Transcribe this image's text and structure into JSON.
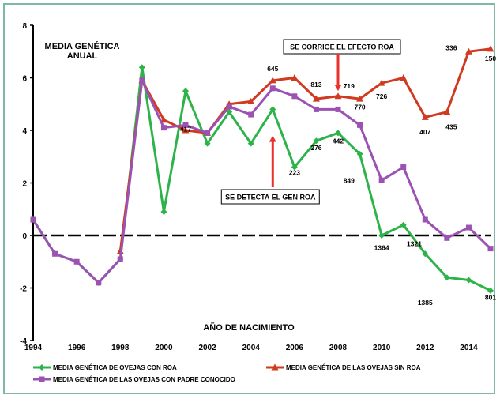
{
  "chart_data": {
    "type": "line",
    "title": "MEDIA GENÉTICA",
    "subtitle": "ANUAL",
    "xlabel": "AÑO DE NACIMIENTO",
    "ylabel": "",
    "xlim": [
      1994,
      2015
    ],
    "ylim": [
      -4,
      8
    ],
    "x_ticks": [
      1994,
      1996,
      1998,
      2000,
      2002,
      2004,
      2006,
      2008,
      2010,
      2012,
      2014
    ],
    "y_ticks": [
      -4,
      -2,
      0,
      2,
      4,
      6,
      8
    ],
    "grid": false,
    "legend_position": "bottom",
    "x": [
      1994,
      1995,
      1996,
      1997,
      1998,
      1999,
      2000,
      2001,
      2002,
      2003,
      2004,
      2005,
      2006,
      2007,
      2008,
      2009,
      2010,
      2011,
      2012,
      2013,
      2014,
      2015
    ],
    "series": [
      {
        "name": "MEDIA GENÉTICA DE OVEJAS CON ROA",
        "color": "#2db34a",
        "marker": "diamond",
        "values": [
          0.6,
          -0.7,
          -1.0,
          -1.8,
          -0.9,
          6.4,
          0.9,
          5.5,
          3.5,
          4.7,
          3.5,
          4.8,
          2.6,
          3.6,
          3.9,
          3.1,
          0.0,
          0.4,
          -0.7,
          -1.6,
          -1.7,
          -2.1
        ]
      },
      {
        "name": "MEDIA GENÉTICA DE LAS OVEJAS SIN ROA",
        "color": "#d03a20",
        "marker": "triangle",
        "values": [
          null,
          null,
          null,
          null,
          -0.6,
          5.9,
          4.4,
          4.0,
          3.9,
          5.0,
          5.1,
          5.9,
          6.0,
          5.2,
          5.3,
          5.2,
          5.8,
          6.0,
          4.5,
          4.7,
          7.0,
          7.1
        ]
      },
      {
        "name": "MEDIA GENÉTICA DE LAS OVEJAS CON PADRE CONOCIDO",
        "color": "#9b52b2",
        "marker": "square",
        "values": [
          0.6,
          -0.7,
          -1.0,
          -1.8,
          -0.9,
          5.9,
          4.1,
          4.2,
          3.9,
          4.9,
          4.6,
          5.6,
          5.3,
          4.8,
          4.8,
          4.2,
          2.1,
          2.6,
          0.6,
          -0.1,
          0.3,
          -0.5
        ]
      }
    ],
    "data_labels": [
      {
        "text": "417",
        "x": 2001,
        "y": 3.95
      },
      {
        "text": "645",
        "x": 2005,
        "y": 6.25
      },
      {
        "text": "223",
        "x": 2006,
        "y": 2.3
      },
      {
        "text": "276",
        "x": 2007,
        "y": 3.25
      },
      {
        "text": "813",
        "x": 2007,
        "y": 5.65
      },
      {
        "text": "442",
        "x": 2008,
        "y": 3.5
      },
      {
        "text": "719",
        "x": 2008.5,
        "y": 5.6
      },
      {
        "text": "770",
        "x": 2009,
        "y": 4.8
      },
      {
        "text": "849",
        "x": 2008.5,
        "y": 2.0
      },
      {
        "text": "726",
        "x": 2010,
        "y": 5.2
      },
      {
        "text": "1364",
        "x": 2010,
        "y": -0.55
      },
      {
        "text": "1321",
        "x": 2011.5,
        "y": -0.4
      },
      {
        "text": "407",
        "x": 2012,
        "y": 3.85
      },
      {
        "text": "435",
        "x": 2013.2,
        "y": 4.05
      },
      {
        "text": "1385",
        "x": 2012,
        "y": -2.65
      },
      {
        "text": "336",
        "x": 2013.2,
        "y": 7.05
      },
      {
        "text": "150",
        "x": 2015,
        "y": 6.65
      },
      {
        "text": "801",
        "x": 2015,
        "y": -2.45
      }
    ],
    "annotations": [
      {
        "text": "SE CORRIGE EL EFECTO ROA",
        "arrow_x": 2008,
        "arrow_from_y": 6.4,
        "arrow_to_y": 5.5
      },
      {
        "text": "SE DETECTA EL GEN ROA",
        "arrow_x": 2005,
        "arrow_from_y": 2.0,
        "arrow_to_y": 3.8
      }
    ]
  }
}
